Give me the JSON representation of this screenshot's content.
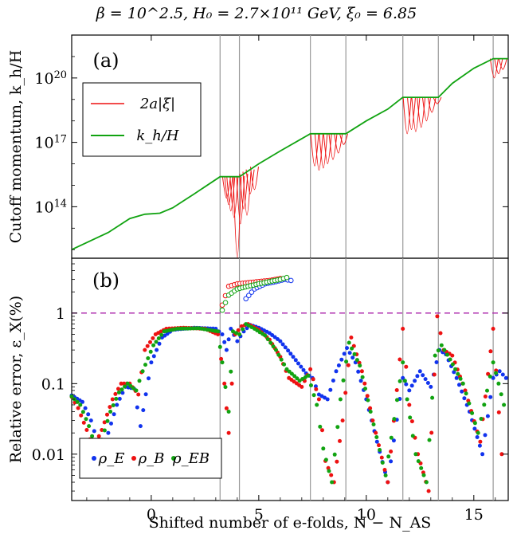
{
  "figure_title": "β = 10^2.5,  H₀ = 2.7×10¹¹ GeV,  ξ₀ = 6.85",
  "colors": {
    "red": "#ee1111",
    "green": "#11a311",
    "blue": "#1133ee",
    "dashed": "#aa22aa",
    "vline": "#999999"
  },
  "chart_data": [
    {
      "panel": "(a)",
      "type": "line",
      "ylabel": "Cutoff momentum, k_h/H",
      "xlim": [
        -3.7,
        16.6
      ],
      "ylog": true,
      "ylim_log10": [
        11.6,
        22.0
      ],
      "yticks": [
        {
          "value": 14,
          "label": "10^14"
        },
        {
          "value": 17,
          "label": "10^17"
        },
        {
          "value": 20,
          "label": "10^20"
        }
      ],
      "legend": {
        "position": "top-left",
        "entries": [
          "2a|ξ|",
          "k_h/H"
        ]
      },
      "series": [
        {
          "name": "k_h/H",
          "color": "green",
          "x": [
            -3.7,
            -2,
            -1,
            -0.3,
            0.4,
            1,
            2,
            3.2,
            4.1,
            5,
            6,
            7.4,
            9.05,
            10,
            11,
            11.7,
            13.35,
            14,
            15,
            15.9,
            16.6
          ],
          "log10_y": [
            12.0,
            12.8,
            13.45,
            13.65,
            13.7,
            13.95,
            14.6,
            15.4,
            15.4,
            16.0,
            16.6,
            17.4,
            17.4,
            18.0,
            18.55,
            19.1,
            19.1,
            19.75,
            20.45,
            20.9,
            20.9
          ]
        },
        {
          "name": "2a|ξ|",
          "color": "red",
          "x": [
            3.5,
            3.6,
            3.7,
            3.85,
            4.0,
            4.15,
            4.3,
            4.45,
            4.6,
            4.8,
            7.6,
            7.8,
            8.0,
            8.2,
            8.45,
            8.7,
            8.95,
            11.9,
            12.1,
            12.3,
            12.55,
            12.8,
            13.05,
            13.3,
            15.95,
            16.15,
            16.35
          ],
          "log10_y": [
            14.4,
            14.1,
            13.8,
            13.5,
            11.6,
            13.2,
            13.9,
            13.6,
            14.6,
            14.8,
            15.9,
            15.7,
            15.8,
            16.0,
            16.2,
            16.5,
            16.9,
            17.4,
            17.6,
            17.5,
            17.7,
            18.0,
            18.4,
            18.8,
            20.0,
            20.2,
            20.4
          ]
        }
      ],
      "plateaus": [
        [
          3.2,
          4.1
        ],
        [
          7.4,
          9.05
        ],
        [
          11.7,
          13.35
        ],
        [
          15.9,
          16.6
        ]
      ]
    },
    {
      "panel": "(b)",
      "type": "scatter",
      "xlabel": "Shifted number of e-folds, N − N_AS",
      "ylabel": "Relative error, ε_X(%)",
      "xlim": [
        -3.7,
        16.6
      ],
      "ylog": true,
      "ylim": [
        0.0022,
        6.0
      ],
      "xticks": [
        {
          "value": 0,
          "label": "0"
        },
        {
          "value": 5,
          "label": "5"
        },
        {
          "value": 10,
          "label": "10"
        },
        {
          "value": 15,
          "label": "15"
        }
      ],
      "yticks": [
        {
          "value": 0.01,
          "label": "0.01"
        },
        {
          "value": 0.1,
          "label": "0.1"
        },
        {
          "value": 1,
          "label": "1"
        }
      ],
      "reference_line": {
        "y": 1,
        "style": "dashed",
        "color": "dashed"
      },
      "legend": {
        "position": "bottom-left",
        "entries": [
          "ρ_E",
          "ρ_B",
          "ρ_EB"
        ]
      },
      "series": [
        {
          "name": "ρ_E",
          "color": "blue",
          "x": [
            -3.7,
            -3.2,
            -2.8,
            -2.5,
            -2.2,
            -2.0,
            -1.6,
            -1.2,
            -0.8,
            -0.5,
            0.0,
            0.5,
            1.0,
            2.0,
            3.0,
            3.3,
            3.5,
            3.7,
            4.0,
            4.3,
            4.6,
            5.0,
            5.5,
            6.0,
            6.6,
            7.2,
            7.5,
            7.8,
            8.2,
            8.6,
            9.1,
            9.5,
            10.0,
            10.5,
            11.0,
            11.7,
            12.0,
            12.5,
            13.0,
            13.4,
            13.7,
            14.2,
            14.8,
            15.4,
            15.9,
            16.2,
            16.5
          ],
          "y": [
            0.068,
            0.055,
            0.03,
            0.015,
            0.01,
            0.02,
            0.05,
            0.09,
            0.085,
            0.025,
            0.2,
            0.45,
            0.58,
            0.62,
            0.6,
            0.5,
            0.3,
            0.6,
            0.4,
            0.55,
            0.68,
            0.62,
            0.52,
            0.4,
            0.24,
            0.14,
            0.12,
            0.07,
            0.06,
            0.15,
            0.32,
            0.2,
            0.06,
            0.015,
            0.004,
            0.12,
            0.08,
            0.15,
            0.09,
            0.3,
            0.26,
            0.12,
            0.04,
            0.01,
            0.12,
            0.15,
            0.12
          ]
        },
        {
          "name": "ρ_B",
          "color": "red",
          "x": [
            -3.7,
            -3.4,
            -3.0,
            -2.7,
            -2.3,
            -1.8,
            -1.4,
            -1.0,
            -0.6,
            -0.3,
            0.2,
            0.7,
            1.5,
            2.5,
            3.1,
            3.4,
            3.6,
            3.9,
            4.2,
            4.5,
            5.0,
            5.5,
            6.0,
            6.4,
            7.0,
            7.4,
            7.8,
            8.1,
            8.5,
            8.9,
            9.3,
            9.8,
            10.3,
            11.0,
            11.7,
            12.0,
            12.4,
            12.9,
            13.3,
            13.6,
            14.0,
            14.6,
            15.3,
            15.9,
            16.3
          ],
          "y": [
            0.065,
            0.045,
            0.022,
            0.012,
            0.022,
            0.06,
            0.1,
            0.1,
            0.07,
            0.3,
            0.5,
            0.6,
            0.62,
            0.6,
            0.5,
            0.1,
            0.02,
            0.5,
            0.65,
            0.7,
            0.58,
            0.42,
            0.24,
            0.12,
            0.09,
            0.16,
            0.06,
            0.008,
            0.004,
            0.03,
            0.45,
            0.15,
            0.03,
            0.004,
            0.6,
            0.05,
            0.01,
            0.003,
            0.9,
            0.3,
            0.25,
            0.08,
            0.015,
            0.6,
            0.01
          ]
        },
        {
          "name": "ρ_EB",
          "color": "green",
          "x": [
            -3.7,
            -3.3,
            -2.9,
            -2.6,
            -2.3,
            -1.9,
            -1.5,
            -1.1,
            -0.7,
            -0.4,
            0.1,
            0.6,
            1.2,
            2.2,
            3.1,
            3.3,
            3.6,
            3.8,
            4.1,
            4.4,
            4.8,
            5.3,
            5.8,
            6.3,
            6.9,
            7.3,
            7.7,
            8.0,
            8.4,
            8.8,
            9.2,
            9.7,
            10.2,
            10.9,
            11.7,
            11.9,
            12.3,
            12.8,
            13.2,
            13.5,
            13.9,
            14.5,
            15.2,
            15.9,
            16.4
          ],
          "y": [
            0.066,
            0.05,
            0.025,
            0.013,
            0.016,
            0.04,
            0.075,
            0.1,
            0.08,
            0.15,
            0.35,
            0.55,
            0.6,
            0.61,
            0.55,
            0.2,
            0.04,
            0.55,
            0.5,
            0.7,
            0.6,
            0.48,
            0.3,
            0.16,
            0.11,
            0.13,
            0.05,
            0.012,
            0.004,
            0.06,
            0.38,
            0.18,
            0.04,
            0.005,
            0.2,
            0.06,
            0.01,
            0.004,
            0.25,
            0.35,
            0.22,
            0.1,
            0.02,
            0.2,
            0.05
          ]
        }
      ],
      "open_markers": {
        "description": "hollow points above the dashed line",
        "series": [
          {
            "name": "ρ_E",
            "color": "blue",
            "x": [
              4.4,
              4.8,
              5.3,
              5.8,
              6.2,
              6.5
            ],
            "y": [
              1.6,
              2.2,
              2.6,
              2.8,
              3.0,
              2.9
            ]
          },
          {
            "name": "ρ_B",
            "color": "red",
            "x": [
              3.3,
              3.6,
              4.0,
              4.5,
              5.0,
              5.5,
              6.0
            ],
            "y": [
              1.3,
              2.4,
              2.6,
              2.7,
              2.8,
              2.9,
              3.1
            ]
          },
          {
            "name": "ρ_EB",
            "color": "green",
            "x": [
              3.3,
              3.6,
              4.0,
              4.5,
              5.0,
              5.5,
              6.0,
              6.3
            ],
            "y": [
              1.1,
              1.8,
              2.2,
              2.4,
              2.6,
              2.8,
              3.0,
              3.2
            ]
          }
        ]
      },
      "vertical_lines": [
        3.2,
        4.1,
        7.4,
        9.05,
        11.7,
        13.35,
        15.9
      ]
    }
  ]
}
